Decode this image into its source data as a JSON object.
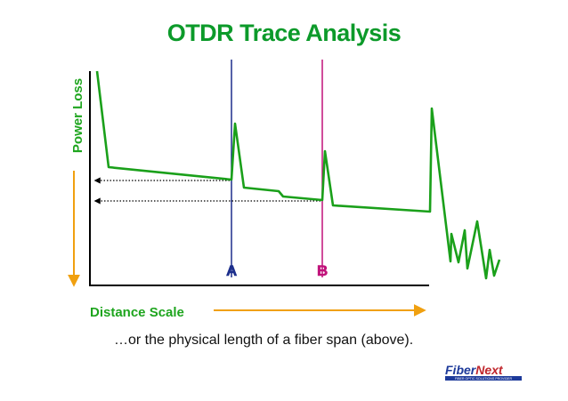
{
  "chart_data": {
    "type": "line",
    "title": "OTDR Trace Analysis",
    "xlabel": "Distance Scale",
    "ylabel": "Power Loss",
    "markers": [
      {
        "label": "A",
        "color": "#1d2f8c"
      },
      {
        "label": "B",
        "color": "#c0127a"
      }
    ],
    "colors": {
      "trace": "#1aa01a",
      "axis_label": "#1ea51e",
      "arrow": "#f0a010"
    }
  },
  "caption": "…or the physical length of a fiber span (above).",
  "logo": {
    "text_a": "Fiber",
    "text_b": "Next",
    "tagline": "FIBER OPTIC SOLUTIONS PROVIDER"
  }
}
